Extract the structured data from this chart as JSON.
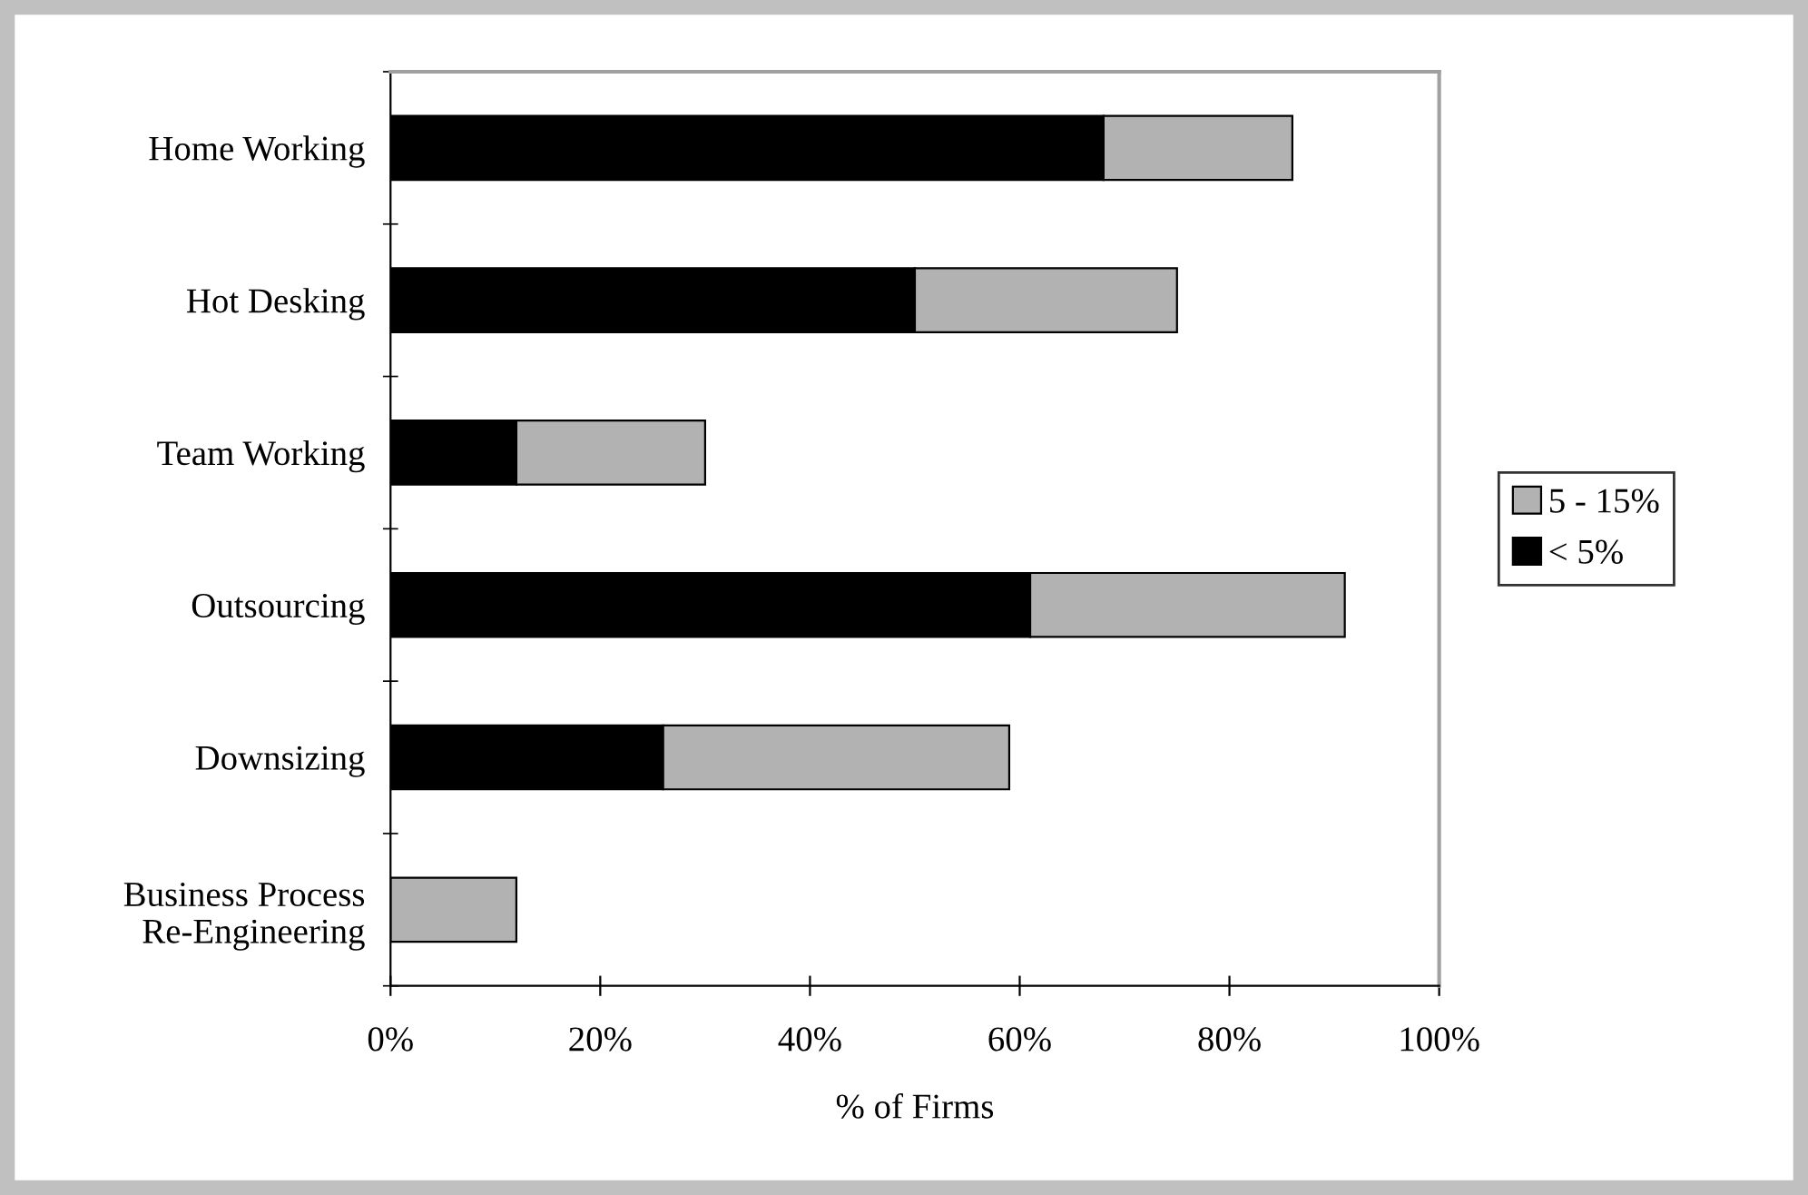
{
  "chart_data": {
    "type": "bar",
    "orientation": "horizontal",
    "stacked": true,
    "xlabel": "% of Firms",
    "categories": [
      "Home Working",
      "Hot Desking",
      "Team Working",
      "Outsourcing",
      "Downsizing",
      "Business Process\nRe-Engineering"
    ],
    "series": [
      {
        "name": "< 5%",
        "color": "#000000",
        "values": [
          68,
          50,
          12,
          61,
          26,
          0
        ]
      },
      {
        "name": "5 - 15%",
        "color": "#b2b2b2",
        "values": [
          18,
          25,
          18,
          30,
          33,
          12
        ]
      }
    ],
    "xlim": [
      0,
      100
    ],
    "xticks": [
      {
        "value": 0,
        "label": "0%"
      },
      {
        "value": 20,
        "label": "20%"
      },
      {
        "value": 40,
        "label": "40%"
      },
      {
        "value": 60,
        "label": "60%"
      },
      {
        "value": 80,
        "label": "80%"
      },
      {
        "value": 100,
        "label": "100%"
      }
    ],
    "legend": "right",
    "grid": false
  }
}
